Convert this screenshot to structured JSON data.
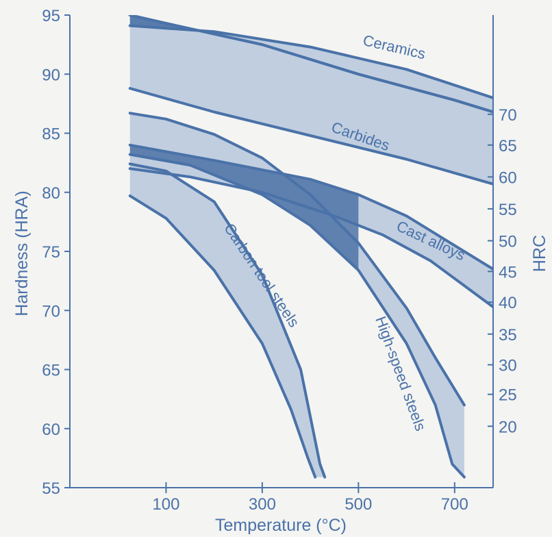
{
  "chart_data": {
    "type": "area",
    "title": "",
    "xlabel": "Temperature (°C)",
    "ylabel": "Hardness (HRA)",
    "y2label": "HRC",
    "xlim": [
      -100,
      780
    ],
    "ylim": [
      55,
      95
    ],
    "x_ticks": [
      100,
      300,
      500,
      700
    ],
    "y_ticks": [
      55,
      60,
      65,
      70,
      75,
      80,
      85,
      90,
      95
    ],
    "y2_ticks": [
      {
        "label": "20",
        "hra": 60.2
      },
      {
        "label": "25",
        "hra": 62.9
      },
      {
        "label": "30",
        "hra": 65.4
      },
      {
        "label": "35",
        "hra": 68.0
      },
      {
        "label": "40",
        "hra": 70.7
      },
      {
        "label": "45",
        "hra": 73.3
      },
      {
        "label": "50",
        "hra": 75.9
      },
      {
        "label": "55",
        "hra": 78.6
      },
      {
        "label": "60",
        "hra": 81.3
      },
      {
        "label": "65",
        "hra": 84.0
      },
      {
        "label": "70",
        "hra": 86.6
      }
    ],
    "grid": false,
    "colors": {
      "line": "#4a72a8",
      "band": "#b6c7dd",
      "overlap": "#4e73a6"
    },
    "series": [
      {
        "name": "Ceramics",
        "upper": [
          [
            25,
            94.1
          ],
          [
            200,
            93.6
          ],
          [
            400,
            92.3
          ],
          [
            600,
            90.4
          ],
          [
            780,
            88.0
          ]
        ],
        "lower": [
          [
            25,
            95.0
          ],
          [
            100,
            94.3
          ],
          [
            300,
            92.5
          ],
          [
            500,
            90.0
          ],
          [
            700,
            87.8
          ],
          [
            780,
            86.8
          ]
        ]
      },
      {
        "name": "Carbides",
        "upper": [
          [
            25,
            95.0
          ],
          [
            100,
            94.3
          ],
          [
            300,
            92.5
          ],
          [
            500,
            90.0
          ],
          [
            700,
            87.8
          ],
          [
            780,
            86.8
          ]
        ],
        "lower": [
          [
            25,
            88.8
          ],
          [
            200,
            86.8
          ],
          [
            400,
            84.8
          ],
          [
            600,
            82.8
          ],
          [
            780,
            80.7
          ]
        ]
      },
      {
        "name": "Cast alloys",
        "upper": [
          [
            25,
            84.0
          ],
          [
            200,
            82.7
          ],
          [
            400,
            81.1
          ],
          [
            500,
            79.8
          ],
          [
            600,
            78.0
          ],
          [
            700,
            75.5
          ],
          [
            780,
            73.5
          ]
        ],
        "lower": [
          [
            25,
            82.0
          ],
          [
            150,
            81.3
          ],
          [
            300,
            80.0
          ],
          [
            450,
            78.0
          ],
          [
            550,
            76.4
          ],
          [
            650,
            74.2
          ],
          [
            780,
            70.3
          ]
        ]
      },
      {
        "name": "High-speed steels",
        "upper": [
          [
            25,
            86.7
          ],
          [
            100,
            86.2
          ],
          [
            200,
            84.9
          ],
          [
            300,
            82.9
          ],
          [
            400,
            79.8
          ],
          [
            500,
            75.7
          ],
          [
            600,
            70.2
          ],
          [
            660,
            66.0
          ],
          [
            720,
            62.0
          ]
        ],
        "lower": [
          [
            25,
            83.2
          ],
          [
            150,
            82.3
          ],
          [
            300,
            79.8
          ],
          [
            400,
            77.2
          ],
          [
            500,
            73.4
          ],
          [
            600,
            67.2
          ],
          [
            660,
            62.0
          ],
          [
            695,
            57.0
          ],
          [
            720,
            55.9
          ]
        ]
      },
      {
        "name": "Carbon tool steels",
        "upper": [
          [
            25,
            82.4
          ],
          [
            100,
            81.8
          ],
          [
            200,
            79.2
          ],
          [
            300,
            73.0
          ],
          [
            380,
            65.0
          ],
          [
            420,
            57.0
          ],
          [
            430,
            55.9
          ]
        ],
        "lower": [
          [
            25,
            79.7
          ],
          [
            100,
            77.8
          ],
          [
            200,
            73.4
          ],
          [
            300,
            67.2
          ],
          [
            360,
            61.6
          ],
          [
            395,
            57.5
          ],
          [
            410,
            55.9
          ]
        ]
      }
    ]
  }
}
